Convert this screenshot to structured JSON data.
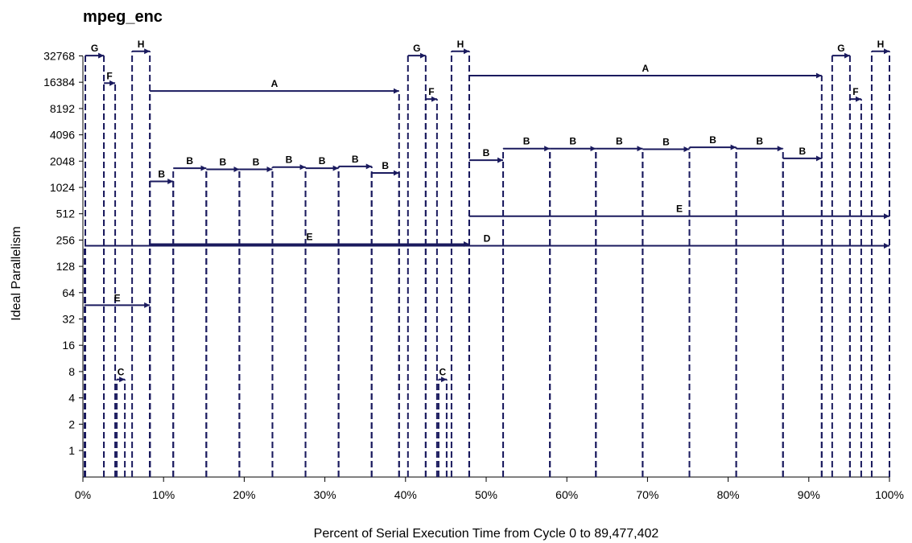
{
  "chart_data": {
    "type": "line",
    "title": "mpeg_enc",
    "xlabel": "Percent of Serial Execution Time from Cycle 0 to 89,477,402",
    "ylabel": "Ideal Parallelism",
    "x_ticks": [
      "0%",
      "10%",
      "20%",
      "30%",
      "40%",
      "50%",
      "60%",
      "70%",
      "80%",
      "90%",
      "100%"
    ],
    "y_ticks": [
      {
        "label": "1",
        "value": 1
      },
      {
        "label": "2",
        "value": 2
      },
      {
        "label": "4",
        "value": 4
      },
      {
        "label": "8",
        "value": 8
      },
      {
        "label": "16",
        "value": 16
      },
      {
        "label": "32",
        "value": 32
      },
      {
        "label": "64",
        "value": 64
      },
      {
        "label": "128",
        "value": 128
      },
      {
        "label": "256",
        "value": 256
      },
      {
        "label": "512",
        "value": 512
      },
      {
        "label": "1024",
        "value": 1024
      },
      {
        "label": "2048",
        "value": 2048
      },
      {
        "label": "4096",
        "value": 4096
      },
      {
        "label": "8192",
        "value": 8192
      },
      {
        "label": "16384",
        "value": 16384
      },
      {
        "label": "32768",
        "value": 32768
      }
    ],
    "xlim": [
      0,
      100
    ],
    "y_scale": "log2",
    "grid": false,
    "regions": [
      {
        "label": "G",
        "x_start": 0.3,
        "x_end": 2.6,
        "y": 33000
      },
      {
        "label": "F",
        "x_start": 2.6,
        "x_end": 4.0,
        "y": 16000
      },
      {
        "label": "C",
        "x_start": 4.2,
        "x_end": 5.2,
        "y": 6.5
      },
      {
        "label": "H",
        "x_start": 6.1,
        "x_end": 8.3,
        "y": 37000
      },
      {
        "label": "E",
        "x_start": 0.2,
        "x_end": 8.3,
        "y": 46
      },
      {
        "label": "A",
        "x_start": 8.3,
        "x_end": 39.2,
        "y": 13000
      },
      {
        "label": "B",
        "x_start": 8.3,
        "x_end": 11.2,
        "y": 1200
      },
      {
        "label": "B",
        "x_start": 11.2,
        "x_end": 15.3,
        "y": 1700
      },
      {
        "label": "B",
        "x_start": 15.3,
        "x_end": 19.4,
        "y": 1650
      },
      {
        "label": "B",
        "x_start": 19.4,
        "x_end": 23.5,
        "y": 1650
      },
      {
        "label": "B",
        "x_start": 23.5,
        "x_end": 27.6,
        "y": 1750
      },
      {
        "label": "B",
        "x_start": 27.6,
        "x_end": 31.7,
        "y": 1700
      },
      {
        "label": "B",
        "x_start": 31.7,
        "x_end": 35.8,
        "y": 1780
      },
      {
        "label": "B",
        "x_start": 35.8,
        "x_end": 39.2,
        "y": 1500
      },
      {
        "label": "E",
        "x_start": 8.3,
        "x_end": 47.9,
        "y": 230
      },
      {
        "label": "G",
        "x_start": 40.3,
        "x_end": 42.5,
        "y": 33000
      },
      {
        "label": "F",
        "x_start": 42.5,
        "x_end": 43.9,
        "y": 10500
      },
      {
        "label": "C",
        "x_start": 44.1,
        "x_end": 45.1,
        "y": 6.5
      },
      {
        "label": "H",
        "x_start": 45.7,
        "x_end": 47.9,
        "y": 37000
      },
      {
        "label": "D",
        "x_start": 0.2,
        "x_end": 100,
        "y": 220
      },
      {
        "label": "A",
        "x_start": 47.9,
        "x_end": 91.6,
        "y": 19500
      },
      {
        "label": "B",
        "x_start": 47.9,
        "x_end": 52.1,
        "y": 2100
      },
      {
        "label": "B",
        "x_start": 52.1,
        "x_end": 57.9,
        "y": 2850
      },
      {
        "label": "B",
        "x_start": 57.9,
        "x_end": 63.6,
        "y": 2850
      },
      {
        "label": "B",
        "x_start": 63.6,
        "x_end": 69.4,
        "y": 2850
      },
      {
        "label": "B",
        "x_start": 69.4,
        "x_end": 75.2,
        "y": 2800
      },
      {
        "label": "B",
        "x_start": 75.2,
        "x_end": 81.0,
        "y": 2950
      },
      {
        "label": "B",
        "x_start": 81.0,
        "x_end": 86.8,
        "y": 2850
      },
      {
        "label": "B",
        "x_start": 86.8,
        "x_end": 91.6,
        "y": 2200
      },
      {
        "label": "E",
        "x_start": 47.9,
        "x_end": 100,
        "y": 480
      },
      {
        "label": "G",
        "x_start": 92.9,
        "x_end": 95.1,
        "y": 33000
      },
      {
        "label": "F",
        "x_start": 95.1,
        "x_end": 96.5,
        "y": 10500
      },
      {
        "label": "H",
        "x_start": 97.8,
        "x_end": 100,
        "y": 37000
      }
    ]
  }
}
